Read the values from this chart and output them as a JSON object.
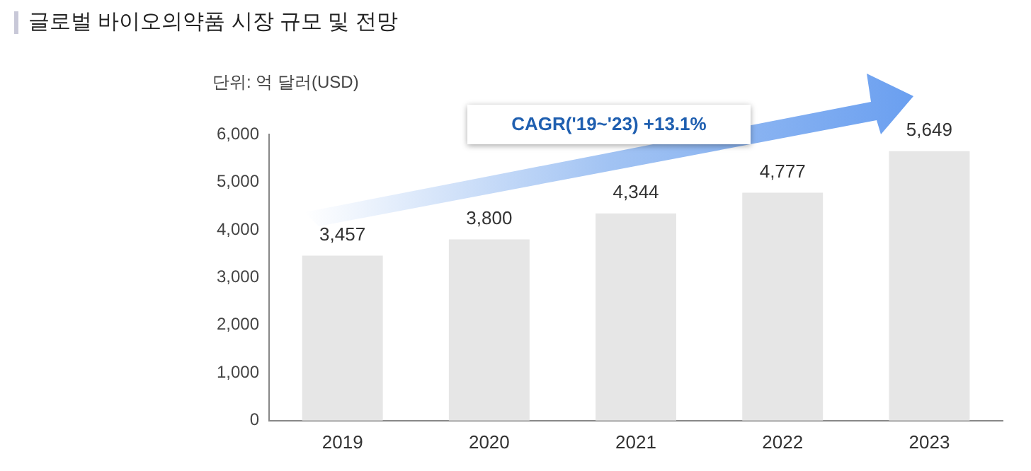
{
  "chart_data": {
    "type": "bar",
    "title": "글로벌 바이오의약품 시장 규모 및 전망",
    "ylabel": "단위: 억 달러(USD)",
    "annotations": [
      "CAGR('19~'23) +13.1%"
    ],
    "categories": [
      "2019",
      "2020",
      "2021",
      "2022",
      "2023"
    ],
    "values": [
      3457,
      3800,
      4344,
      4777,
      5649
    ],
    "value_labels": [
      "3,457",
      "3,800",
      "4,344",
      "4,777",
      "5,649"
    ],
    "color": "#e6e6e6",
    "ylim": [
      0,
      6000
    ],
    "yticks": [
      {
        "value": 0,
        "label": "0"
      },
      {
        "value": 1000,
        "label": "1,000"
      },
      {
        "value": 2000,
        "label": "2,000"
      },
      {
        "value": 3000,
        "label": "3,000"
      },
      {
        "value": 4000,
        "label": "4,000"
      },
      {
        "value": 5000,
        "label": "5,000"
      },
      {
        "value": 6000,
        "label": "6,000"
      }
    ],
    "grid": false,
    "legend": false
  }
}
